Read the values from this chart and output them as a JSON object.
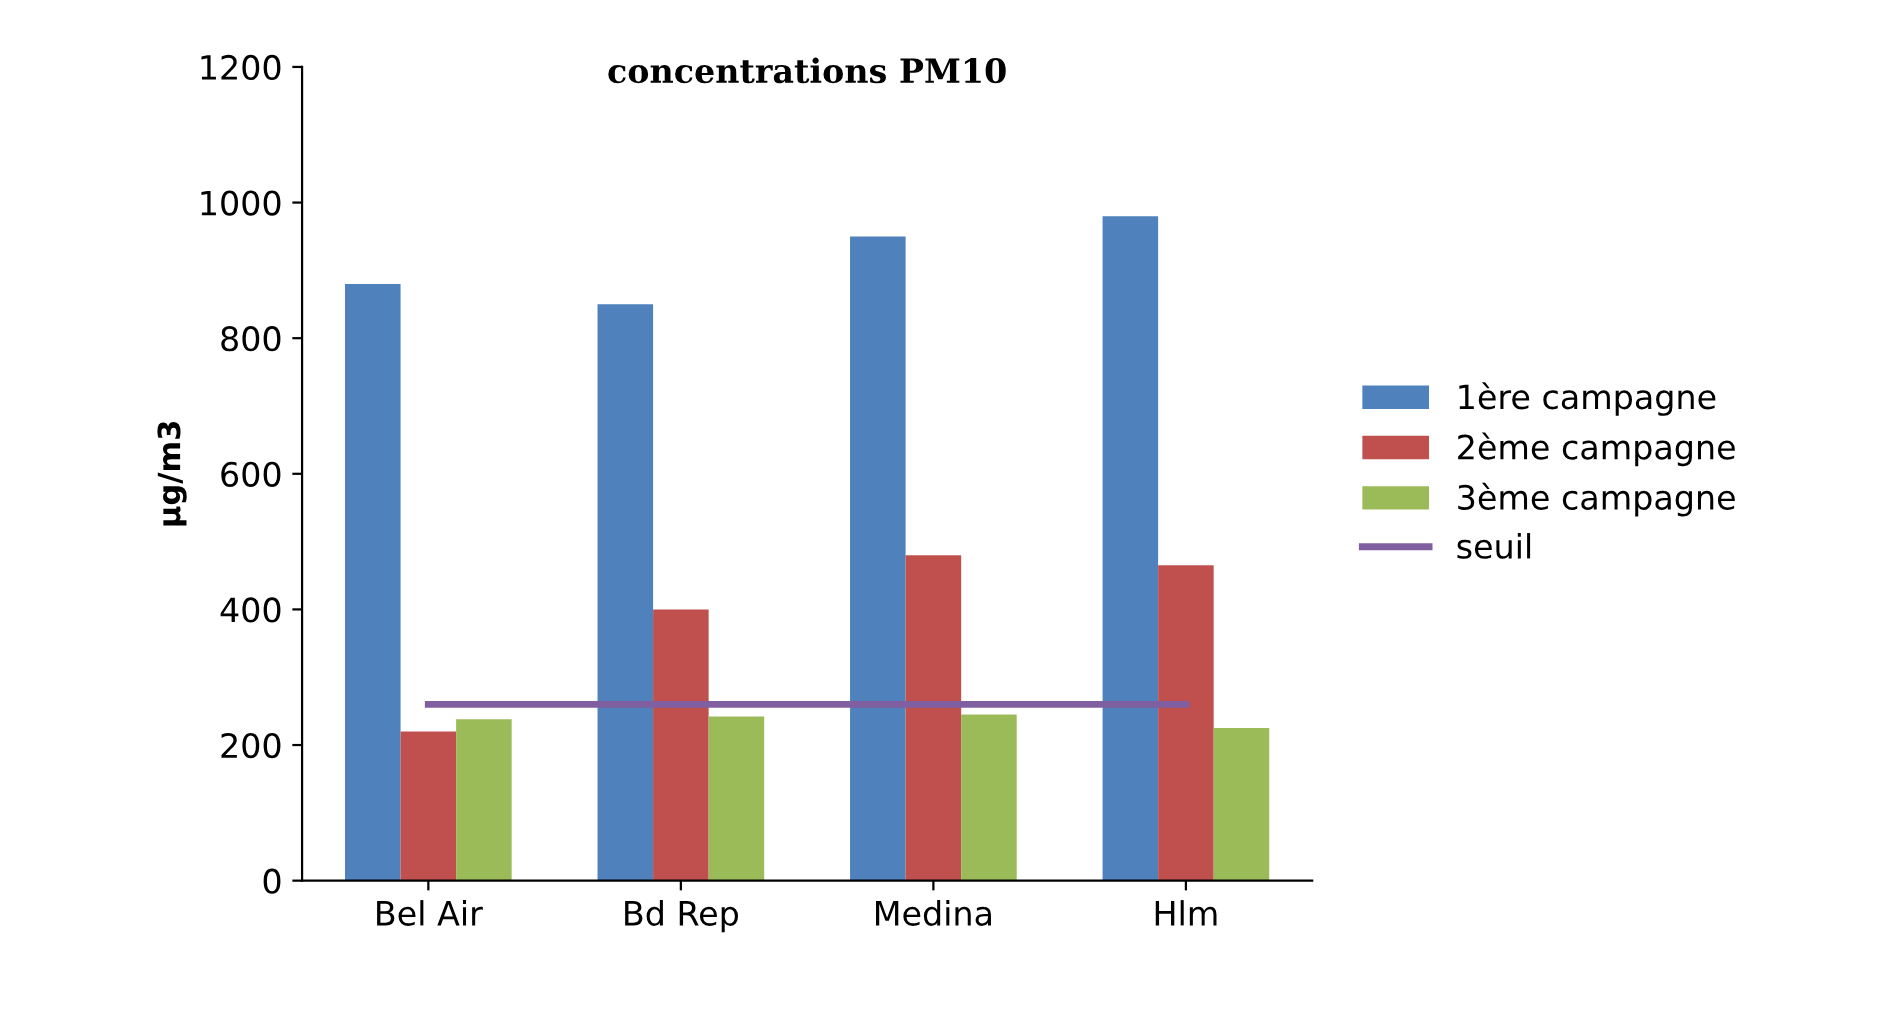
{
  "chart_data": {
    "type": "bar",
    "title": "concentrations PM10",
    "ylabel": "µg/m3",
    "categories": [
      "Bel Air",
      "Bd Rep",
      "Medina",
      "Hlm"
    ],
    "series": [
      {
        "name": "1ère campagne",
        "color": "#4f81bd",
        "values": [
          880,
          850,
          950,
          980
        ]
      },
      {
        "name": "2ème campagne",
        "color": "#c0504d",
        "values": [
          220,
          400,
          480,
          465
        ]
      },
      {
        "name": "3ème campagne",
        "color": "#9bbb59",
        "values": [
          238,
          242,
          245,
          225
        ]
      },
      {
        "name": "seuil",
        "type": "line",
        "color": "#7f5f9f",
        "values": [
          260,
          260,
          260,
          260
        ]
      }
    ],
    "ylim": [
      0,
      1200
    ],
    "yticks": [
      0,
      200,
      400,
      600,
      800,
      1000,
      1200
    ],
    "grid": false,
    "legend": "right"
  }
}
